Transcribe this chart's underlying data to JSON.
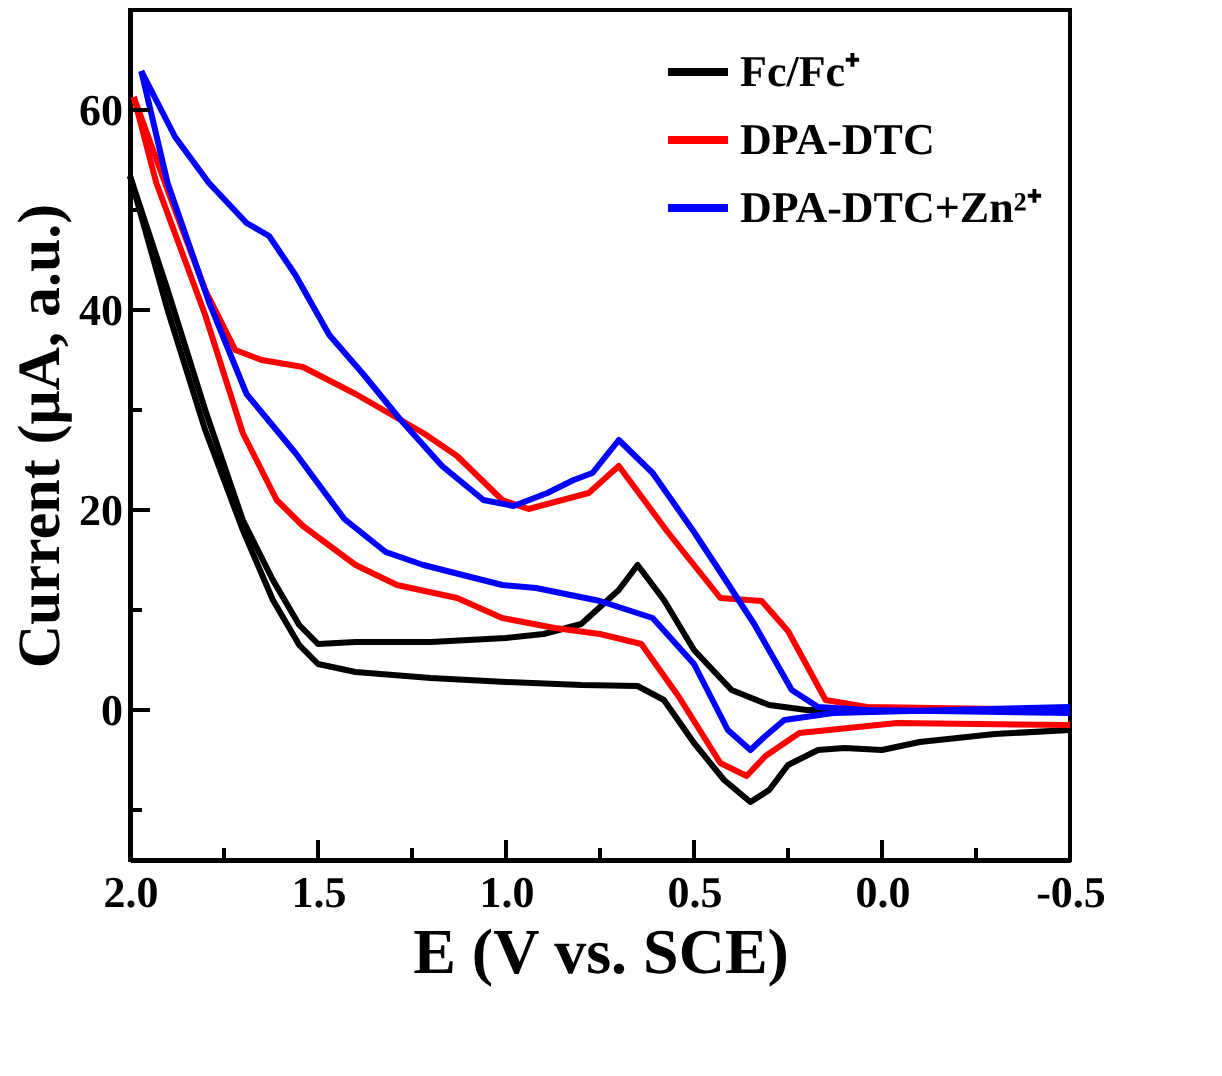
{
  "chart_data": {
    "type": "line",
    "xlabel": "E (V vs. SCE)",
    "ylabel": "Current (μA, a.u.)",
    "xlim": [
      2.0,
      -0.5
    ],
    "ylim": [
      -15,
      70
    ],
    "xticks": [
      {
        "value": 2.0,
        "label": "2.0"
      },
      {
        "value": 1.75,
        "label": null
      },
      1.5,
      {
        "value": 1.25,
        "label": null
      },
      {
        "value": 1.0,
        "label": "1.0"
      },
      {
        "value": 0.75,
        "label": null
      },
      0.5,
      {
        "value": 0.25,
        "label": null
      },
      {
        "value": 0.0,
        "label": "0.0"
      },
      {
        "value": -0.25,
        "label": null
      },
      -0.5
    ],
    "yticks": [
      {
        "value": -10,
        "label": null
      },
      0,
      {
        "value": 10,
        "label": null
      },
      20,
      {
        "value": 30,
        "label": null
      },
      40,
      {
        "value": 50,
        "label": null
      },
      60
    ],
    "grid": false,
    "legend": "top right",
    "line_style": "solid",
    "series": [
      {
        "name": "Fc/Fc⁺",
        "color": "#000000",
        "x": [
          2.0,
          1.9,
          1.8,
          1.7,
          1.62,
          1.55,
          1.5,
          1.4,
          1.2,
          1.0,
          0.8,
          0.65,
          0.58,
          0.5,
          0.42,
          0.35,
          0.3,
          0.25,
          0.17,
          0.1,
          0.0,
          -0.1,
          -0.3,
          -0.5
        ],
        "values": [
          53.4,
          40,
          28,
          18,
          11,
          6.5,
          4.6,
          3.8,
          3.2,
          2.8,
          2.5,
          2.4,
          1,
          -3.3,
          -7,
          -9.2,
          -8,
          -5.5,
          -4,
          -3.8,
          -4,
          -3.2,
          -2.4,
          -2
        ]
      },
      {
        "color": "#000000",
        "x": [
          -0.5,
          -0.2,
          0.0,
          0.2,
          0.3,
          0.4,
          0.5,
          0.58,
          0.65,
          0.7,
          0.8,
          0.9,
          1.0,
          1.2,
          1.4,
          1.5,
          1.55,
          1.62,
          1.7,
          1.8,
          1.9,
          2.0
        ],
        "values": [
          0,
          0,
          0,
          0,
          0.5,
          2,
          6,
          11,
          14.5,
          12,
          8.6,
          7.6,
          7.2,
          6.8,
          6.8,
          6.6,
          8.5,
          13,
          19,
          30,
          42,
          53.4
        ]
      },
      {
        "name": "DPA-DTC",
        "color": "#ff0000",
        "x": [
          1.99,
          1.9,
          1.8,
          1.72,
          1.65,
          1.54,
          1.4,
          1.22,
          1.13,
          1.01,
          0.94,
          0.78,
          0.7,
          0.57,
          0.43,
          0.32,
          0.25,
          0.15,
          0.04,
          -0.5
        ],
        "values": [
          61.3,
          52,
          42,
          36,
          35,
          34.3,
          31.6,
          27.7,
          25.4,
          21,
          20.1,
          21.7,
          24.4,
          17.8,
          11.2,
          10.9,
          7.9,
          1,
          0.3,
          0
        ]
      },
      {
        "color": "#ff0000",
        "x": [
          -0.5,
          -0.04,
          0.22,
          0.31,
          0.36,
          0.43,
          0.54,
          0.64,
          0.75,
          0.87,
          1.01,
          1.13,
          1.29,
          1.4,
          1.54,
          1.61,
          1.7,
          1.8,
          1.93,
          1.99
        ],
        "values": [
          -1.5,
          -1.3,
          -2.3,
          -4.6,
          -6.6,
          -5.3,
          1.3,
          6.6,
          7.6,
          8.2,
          9.2,
          11.2,
          12.5,
          14.5,
          18.4,
          21,
          27.7,
          39.5,
          52.7,
          61.3
        ]
      },
      {
        "name": "DPA-DTC+Zn²⁺",
        "color": "#0000ff",
        "x": [
          1.97,
          1.88,
          1.79,
          1.69,
          1.63,
          1.56,
          1.47,
          1.38,
          1.28,
          1.17,
          1.06,
          0.98,
          0.89,
          0.82,
          0.77,
          0.7,
          0.61,
          0.5,
          0.43,
          0.34,
          0.24,
          0.17,
          0.04,
          -0.5
        ],
        "values": [
          63.9,
          57.3,
          52.7,
          48.7,
          47.4,
          43.5,
          37.5,
          33.6,
          29,
          24.4,
          21,
          20.4,
          21.7,
          23,
          23.7,
          27,
          23.7,
          17.8,
          13.8,
          8.6,
          2,
          0.3,
          0,
          -0.3
        ]
      },
      {
        "color": "#0000ff",
        "x": [
          -0.5,
          0.13,
          0.26,
          0.31,
          0.35,
          0.41,
          0.5,
          0.61,
          0.75,
          0.92,
          1.01,
          1.22,
          1.32,
          1.43,
          1.56,
          1.69,
          1.79,
          1.9,
          1.97
        ],
        "values": [
          0.3,
          -0.3,
          -1,
          -2.6,
          -4,
          -2,
          4.6,
          9.2,
          10.9,
          12.2,
          12.5,
          14.5,
          15.8,
          19.1,
          25.7,
          31.6,
          40.8,
          52.7,
          63.9
        ]
      }
    ]
  }
}
